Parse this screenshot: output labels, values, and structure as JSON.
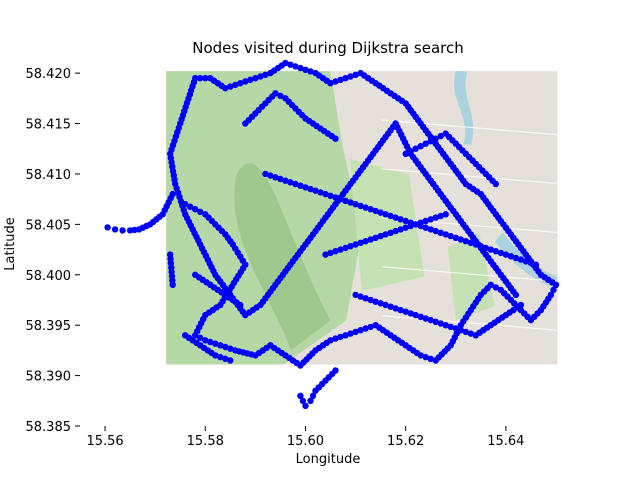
{
  "chart_data": {
    "type": "scatter",
    "title": "Nodes visited during Dijkstra search",
    "xlabel": "Longitude",
    "ylabel": "Latitude",
    "xlim": [
      15.555,
      15.654
    ],
    "ylim": [
      58.385,
      58.4215
    ],
    "x_ticks": [
      15.56,
      15.58,
      15.6,
      15.62,
      15.64
    ],
    "x_tick_labels": [
      "15.56",
      "15.58",
      "15.60",
      "15.62",
      "15.64"
    ],
    "y_ticks": [
      58.385,
      58.39,
      58.395,
      58.4,
      58.405,
      58.41,
      58.415,
      58.42
    ],
    "y_tick_labels": [
      "58.385",
      "58.390",
      "58.395",
      "58.400",
      "58.405",
      "58.410",
      "58.415",
      "58.420"
    ],
    "grid": false,
    "background_map_extent": {
      "lon": [
        15.5722,
        15.6503
      ],
      "lat": [
        58.3911,
        58.4202
      ]
    },
    "colors": {
      "nodes": "#0000ff",
      "map_forest": "#b6d8a6",
      "map_urban": "#e6e0da",
      "map_water": "#aad3df"
    },
    "series": [
      {
        "marker_color": "#0000ff",
        "x": [
          15.5605,
          15.562,
          15.5635,
          15.565,
          15.5668,
          15.569,
          15.5715,
          15.5735,
          15.573,
          15.5735,
          15.576,
          15.578,
          15.58,
          15.582,
          15.584,
          15.5855,
          15.588,
          15.583,
          15.58,
          15.578,
          15.58,
          15.583,
          15.586,
          15.59,
          15.593,
          15.596,
          15.599,
          15.602,
          15.605,
          15.608,
          15.611,
          15.614,
          15.617,
          15.62,
          15.623,
          15.626,
          15.629,
          15.631,
          15.633,
          15.635,
          15.637,
          15.639,
          15.641,
          15.643,
          15.645,
          15.647,
          15.649,
          15.65,
          15.647,
          15.644,
          15.641,
          15.638,
          15.635,
          15.632,
          15.629,
          15.626,
          15.623,
          15.62,
          15.617,
          15.614,
          15.611,
          15.608,
          15.605,
          15.602,
          15.599,
          15.596,
          15.593,
          15.59,
          15.587,
          15.584,
          15.581,
          15.578,
          15.575,
          15.573,
          15.574,
          15.576,
          15.579,
          15.582,
          15.585,
          15.588,
          15.591,
          15.594,
          15.597,
          15.6,
          15.603,
          15.606,
          15.609,
          15.612,
          15.615,
          15.618,
          15.621,
          15.624,
          15.627,
          15.63,
          15.633,
          15.636,
          15.639,
          15.642,
          15.599,
          15.6,
          15.601,
          15.602,
          15.604,
          15.606,
          15.588,
          15.59,
          15.592,
          15.594,
          15.596,
          15.598,
          15.6,
          15.603,
          15.606,
          15.592,
          15.595,
          15.598,
          15.601,
          15.604,
          15.607,
          15.61,
          15.613,
          15.616,
          15.619,
          15.622,
          15.625,
          15.628,
          15.631,
          15.634,
          15.637,
          15.64,
          15.643,
          15.646,
          15.578,
          15.581,
          15.584,
          15.587,
          15.61,
          15.613,
          15.616,
          15.619,
          15.622,
          15.625,
          15.628,
          15.631,
          15.634,
          15.637,
          15.64,
          15.643,
          15.576,
          15.579,
          15.582,
          15.585,
          15.62,
          15.622,
          15.624,
          15.626,
          15.628,
          15.63,
          15.632,
          15.634,
          15.636,
          15.638,
          15.604,
          15.607,
          15.61,
          15.613,
          15.616,
          15.619,
          15.622,
          15.625,
          15.628
        ],
        "y": [
          58.4047,
          58.4045,
          58.4044,
          58.4044,
          58.4045,
          58.405,
          58.406,
          58.408,
          58.402,
          58.399,
          58.407,
          58.4065,
          58.406,
          58.405,
          58.404,
          58.403,
          58.401,
          58.397,
          58.396,
          58.394,
          58.3935,
          58.393,
          58.3925,
          58.392,
          58.393,
          58.392,
          58.391,
          58.3925,
          58.3935,
          58.394,
          58.3945,
          58.395,
          58.394,
          58.393,
          58.392,
          58.3915,
          58.393,
          58.395,
          58.3965,
          58.398,
          58.399,
          58.3985,
          58.3975,
          58.3965,
          58.3955,
          58.3965,
          58.398,
          58.399,
          58.4,
          58.402,
          58.404,
          58.406,
          58.408,
          58.409,
          58.411,
          58.413,
          58.415,
          58.417,
          58.418,
          58.419,
          58.42,
          58.4195,
          58.419,
          58.42,
          58.4205,
          58.421,
          58.42,
          58.4195,
          58.419,
          58.4185,
          58.4195,
          58.4195,
          58.415,
          58.412,
          58.409,
          58.406,
          58.403,
          58.4,
          58.398,
          58.396,
          58.397,
          58.399,
          58.401,
          58.403,
          58.405,
          58.407,
          58.409,
          58.411,
          58.413,
          58.415,
          58.412,
          58.41,
          58.408,
          58.406,
          58.404,
          58.402,
          58.4,
          58.398,
          58.388,
          58.387,
          58.3875,
          58.3885,
          58.3895,
          58.3905,
          58.415,
          58.416,
          58.417,
          58.418,
          58.4175,
          58.4165,
          58.4155,
          58.4145,
          58.4135,
          58.41,
          58.4095,
          58.409,
          58.4085,
          58.408,
          58.4075,
          58.407,
          58.4065,
          58.406,
          58.4055,
          58.405,
          58.4045,
          58.404,
          58.4035,
          58.403,
          58.4025,
          58.402,
          58.4015,
          58.401,
          58.4,
          58.399,
          58.398,
          58.397,
          58.398,
          58.3975,
          58.397,
          58.3965,
          58.396,
          58.3955,
          58.395,
          58.3945,
          58.394,
          58.395,
          58.396,
          58.397,
          58.394,
          58.393,
          58.392,
          58.3915,
          58.412,
          58.4125,
          58.413,
          58.4135,
          58.414,
          58.413,
          58.412,
          58.411,
          58.41,
          58.409,
          58.402,
          58.4025,
          58.403,
          58.4035,
          58.404,
          58.4045,
          58.405,
          58.4055,
          58.406
        ]
      }
    ]
  }
}
